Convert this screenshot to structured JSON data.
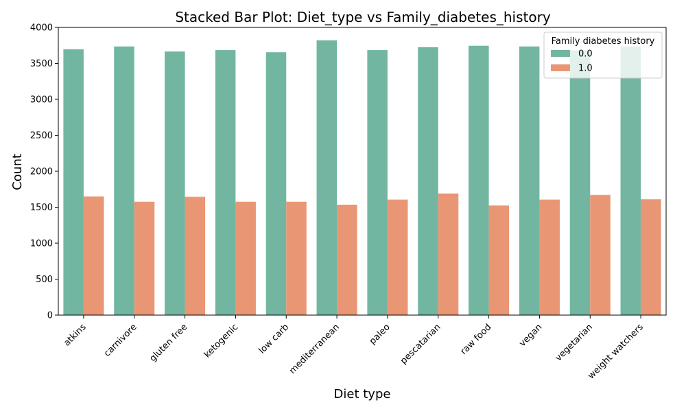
{
  "chart_data": {
    "type": "bar",
    "title": "Stacked Bar Plot: Diet_type vs Family_diabetes_history",
    "xlabel": "Diet type",
    "ylabel": "Count",
    "ylim": [
      0,
      4000
    ],
    "yticks": [
      "0",
      "500",
      "1000",
      "1500",
      "2000",
      "2500",
      "3000",
      "3500",
      "4000"
    ],
    "categories": [
      "atkins",
      "carnivore",
      "gluten free",
      "ketogenic",
      "low carb",
      "mediterranean",
      "paleo",
      "pescatarian",
      "raw food",
      "vegan",
      "vegetarian",
      "weight watchers"
    ],
    "legend_title": "Family diabetes history",
    "legend_position": "top-right",
    "grid": false,
    "series": [
      {
        "name": "0.0",
        "color": "#72b6a1",
        "values": [
          3695,
          3735,
          3665,
          3685,
          3655,
          3820,
          3685,
          3725,
          3745,
          3735,
          3680,
          3735
        ]
      },
      {
        "name": "1.0",
        "color": "#e99675",
        "values": [
          1650,
          1575,
          1645,
          1575,
          1575,
          1535,
          1605,
          1690,
          1525,
          1605,
          1670,
          1610
        ]
      }
    ]
  }
}
